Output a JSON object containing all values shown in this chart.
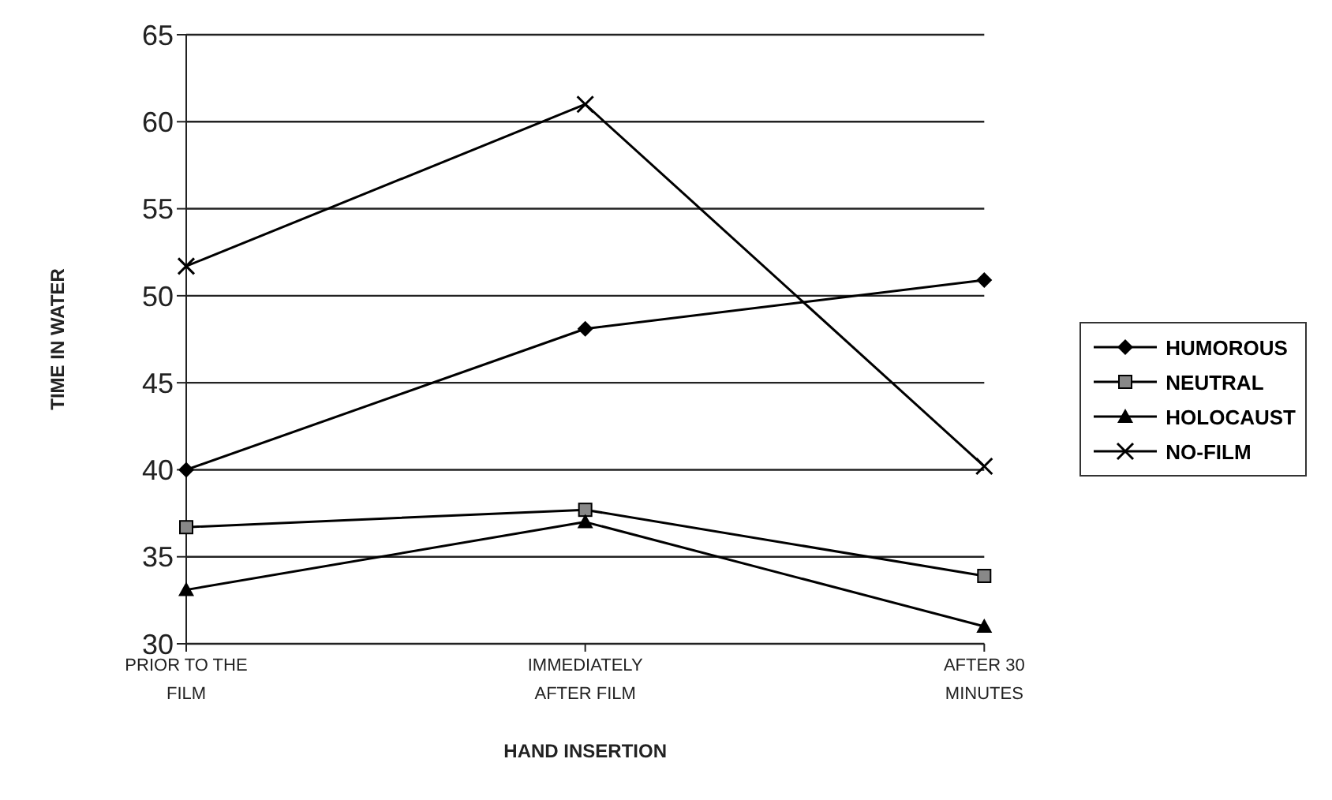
{
  "chart_data": {
    "type": "line",
    "xlabel": "HAND INSERTION",
    "ylabel": "TIME IN WATER",
    "categories": [
      "PRIOR TO THE FILM",
      "IMMEDIATELY AFTER FILM",
      "AFTER 30 MINUTES"
    ],
    "series": [
      {
        "name": "HUMOROUS",
        "color": "#000000",
        "marker": "diamond",
        "values": [
          40,
          48.1,
          50.9
        ]
      },
      {
        "name": "NEUTRAL",
        "color": "#000000",
        "marker": "square",
        "values": [
          36.7,
          37.7,
          33.9
        ]
      },
      {
        "name": "HOLOCAUST",
        "color": "#000000",
        "marker": "triangle",
        "values": [
          33.1,
          37,
          31
        ]
      },
      {
        "name": "NO-FILM",
        "color": "#000000",
        "marker": "cross",
        "values": [
          51.7,
          61,
          40.2
        ]
      }
    ],
    "ylim": [
      30,
      65
    ],
    "yticks": [
      30,
      35,
      40,
      45,
      50,
      55,
      60,
      65
    ],
    "grid": "y",
    "legend": "right",
    "line_style": "solid"
  }
}
